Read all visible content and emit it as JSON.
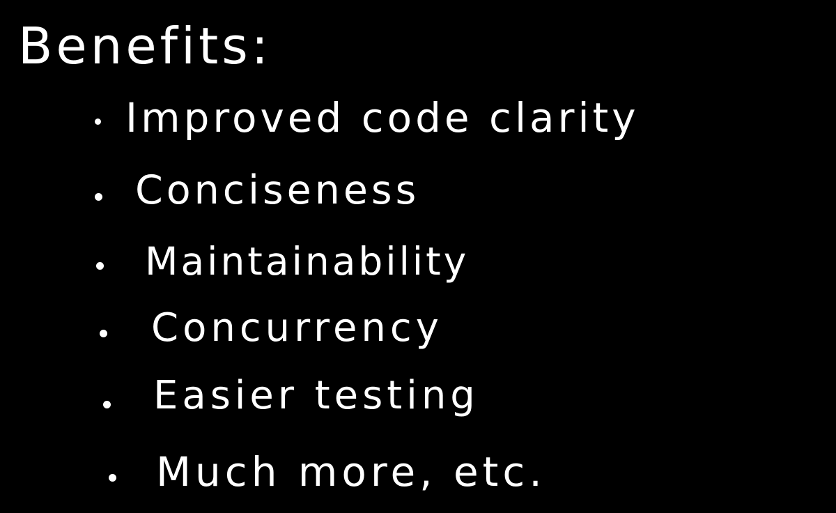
{
  "title": "Benefits:",
  "items": [
    "Improved code clarity",
    "Conciseness",
    "Maintainability",
    "Concurrency",
    "Easier testing",
    "Much more, etc."
  ],
  "colors": {
    "background": "#000000",
    "ink": "#ffffff"
  }
}
